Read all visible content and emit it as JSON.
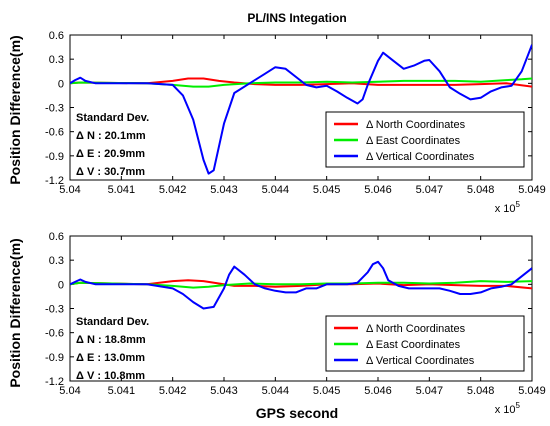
{
  "chart_data": [
    {
      "type": "line",
      "title": "PL/INS Integation",
      "xlabel": "",
      "ylabel": "Position Difference(m)",
      "xlim": [
        5.04,
        5.049
      ],
      "ylim": [
        -1.2,
        0.6
      ],
      "x_scale_label": {
        "base": "x 10",
        "exp": "5"
      },
      "x_ticks": [
        "5.04",
        "5.041",
        "5.042",
        "5.043",
        "5.044",
        "5.045",
        "5.046",
        "5.047",
        "5.048",
        "5.049"
      ],
      "y_ticks": [
        "0.6",
        "0.3",
        "0",
        "-0.3",
        "-0.6",
        "-0.9",
        "-1.2"
      ],
      "stats": {
        "heading": "Standard Dev.",
        "n": "N : 20.1mm",
        "e": "E : 20.9mm",
        "v": "V : 30.7mm"
      },
      "legend_placement": "bottom-right",
      "series": [
        {
          "name": "North Coordinates",
          "color": "#ff0000",
          "x": [
            5.04,
            5.0402,
            5.0415,
            5.042,
            5.0423,
            5.0426,
            5.0429,
            5.0432,
            5.0436,
            5.044,
            5.0445,
            5.045,
            5.0455,
            5.046,
            5.0465,
            5.047,
            5.0475,
            5.048,
            5.0485,
            5.049
          ],
          "y": [
            0.0,
            0.01,
            0.0,
            0.03,
            0.06,
            0.06,
            0.03,
            0.01,
            -0.01,
            -0.02,
            -0.02,
            -0.01,
            0.0,
            -0.02,
            -0.02,
            -0.02,
            -0.02,
            -0.01,
            0.0,
            -0.04
          ]
        },
        {
          "name": "East Coordinates",
          "color": "#00ee00",
          "x": [
            5.04,
            5.0402,
            5.0415,
            5.042,
            5.0424,
            5.0427,
            5.043,
            5.0435,
            5.044,
            5.0445,
            5.045,
            5.0455,
            5.046,
            5.0465,
            5.047,
            5.0475,
            5.048,
            5.0485,
            5.0488,
            5.049
          ],
          "y": [
            0.0,
            0.01,
            0.0,
            -0.02,
            -0.04,
            -0.04,
            -0.02,
            0.0,
            0.01,
            0.01,
            0.02,
            0.01,
            0.02,
            0.03,
            0.03,
            0.03,
            0.02,
            0.04,
            0.05,
            0.06
          ]
        },
        {
          "name": "Vertical Coordinates",
          "color": "#0000ff",
          "x": [
            5.04,
            5.0401,
            5.0402,
            5.0403,
            5.0405,
            5.041,
            5.0415,
            5.042,
            5.0422,
            5.0424,
            5.0426,
            5.0427,
            5.0428,
            5.043,
            5.0432,
            5.0435,
            5.0438,
            5.044,
            5.0442,
            5.0444,
            5.0446,
            5.0448,
            5.045,
            5.0452,
            5.0454,
            5.0456,
            5.0457,
            5.0458,
            5.046,
            5.0461,
            5.0463,
            5.0465,
            5.0467,
            5.0469,
            5.047,
            5.0472,
            5.0474,
            5.0476,
            5.0478,
            5.048,
            5.0482,
            5.0484,
            5.0486,
            5.0488,
            5.049
          ],
          "y": [
            0.0,
            0.04,
            0.07,
            0.03,
            0.0,
            0.0,
            0.0,
            -0.02,
            -0.15,
            -0.45,
            -0.95,
            -1.12,
            -1.08,
            -0.5,
            -0.12,
            0.0,
            0.12,
            0.2,
            0.18,
            0.08,
            -0.02,
            -0.05,
            -0.03,
            -0.1,
            -0.18,
            -0.25,
            -0.2,
            -0.02,
            0.28,
            0.38,
            0.28,
            0.18,
            0.22,
            0.28,
            0.29,
            0.15,
            -0.05,
            -0.13,
            -0.2,
            -0.18,
            -0.1,
            -0.05,
            -0.03,
            0.15,
            0.48
          ]
        }
      ]
    },
    {
      "type": "line",
      "title": "",
      "xlabel": "GPS second",
      "ylabel": "Position Difference(m)",
      "xlim": [
        5.04,
        5.049
      ],
      "ylim": [
        -1.2,
        0.6
      ],
      "x_scale_label": {
        "base": "x 10",
        "exp": "5"
      },
      "x_ticks": [
        "5.04",
        "5.041",
        "5.042",
        "5.043",
        "5.044",
        "5.045",
        "5.046",
        "5.047",
        "5.048",
        "5.049"
      ],
      "y_ticks": [
        "0.6",
        "0.3",
        "0",
        "-0.3",
        "-0.6",
        "-0.9",
        "-1.2"
      ],
      "stats": {
        "heading": "Standard Dev.",
        "n": "N : 18.8mm",
        "e": "E : 13.0mm",
        "v": "V : 10.8mm"
      },
      "legend_placement": "bottom-right",
      "series": [
        {
          "name": "North Coordinates",
          "color": "#ff0000",
          "x": [
            5.04,
            5.0402,
            5.0415,
            5.042,
            5.0423,
            5.0426,
            5.0429,
            5.0432,
            5.0436,
            5.044,
            5.0445,
            5.045,
            5.0455,
            5.046,
            5.0465,
            5.047,
            5.0475,
            5.048,
            5.0485,
            5.049
          ],
          "y": [
            0.0,
            0.02,
            0.0,
            0.04,
            0.05,
            0.04,
            0.01,
            -0.02,
            -0.02,
            -0.03,
            -0.02,
            0.0,
            0.0,
            0.01,
            -0.01,
            0.0,
            -0.01,
            -0.02,
            -0.02,
            -0.05
          ]
        },
        {
          "name": "East Coordinates",
          "color": "#00ee00",
          "x": [
            5.04,
            5.0402,
            5.0415,
            5.042,
            5.0424,
            5.0427,
            5.043,
            5.0435,
            5.044,
            5.0445,
            5.045,
            5.0455,
            5.046,
            5.0465,
            5.047,
            5.0475,
            5.048,
            5.0485,
            5.049
          ],
          "y": [
            0.0,
            0.02,
            0.0,
            -0.02,
            -0.04,
            -0.03,
            -0.01,
            0.01,
            0.0,
            0.0,
            0.01,
            0.01,
            0.02,
            0.02,
            0.01,
            0.02,
            0.04,
            0.03,
            0.04
          ]
        },
        {
          "name": "Vertical Coordinates",
          "color": "#0000ff",
          "x": [
            5.04,
            5.0401,
            5.0402,
            5.0403,
            5.0405,
            5.041,
            5.0415,
            5.042,
            5.0422,
            5.0424,
            5.0426,
            5.0428,
            5.043,
            5.0431,
            5.0432,
            5.0434,
            5.0436,
            5.0438,
            5.044,
            5.0442,
            5.0444,
            5.0446,
            5.0448,
            5.045,
            5.0452,
            5.0454,
            5.0456,
            5.0458,
            5.0459,
            5.046,
            5.0461,
            5.0462,
            5.0464,
            5.0466,
            5.0468,
            5.047,
            5.0472,
            5.0474,
            5.0476,
            5.0478,
            5.048,
            5.0482,
            5.0484,
            5.0486,
            5.0488,
            5.049
          ],
          "y": [
            0.0,
            0.03,
            0.06,
            0.03,
            0.0,
            0.0,
            0.0,
            -0.05,
            -0.12,
            -0.22,
            -0.3,
            -0.28,
            -0.05,
            0.12,
            0.22,
            0.12,
            0.0,
            -0.05,
            -0.08,
            -0.1,
            -0.1,
            -0.05,
            -0.05,
            0.0,
            0.0,
            0.0,
            0.02,
            0.15,
            0.25,
            0.28,
            0.2,
            0.05,
            -0.02,
            -0.05,
            -0.05,
            -0.05,
            -0.05,
            -0.08,
            -0.12,
            -0.12,
            -0.1,
            -0.05,
            -0.03,
            0.0,
            0.1,
            0.2
          ]
        }
      ]
    }
  ]
}
